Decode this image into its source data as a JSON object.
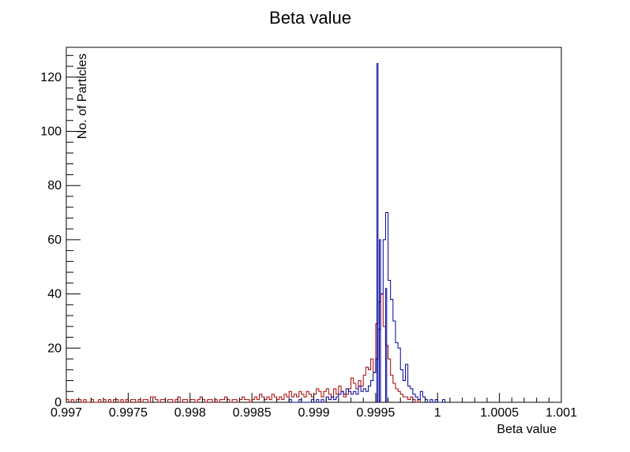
{
  "chart_data": {
    "type": "histogram",
    "title": "Beta value",
    "xlabel": "Beta value",
    "ylabel": "No. of Particles",
    "xlim": [
      0.997,
      1.001
    ],
    "ylim": [
      0,
      131
    ],
    "x_ticks": [
      "0.997",
      "0.9975",
      "0.998",
      "0.9985",
      "0.999",
      "0.9995",
      "1",
      "1.0005",
      "1.001"
    ],
    "x_tick_values": [
      0.997,
      0.9975,
      0.998,
      0.9985,
      0.999,
      0.9995,
      1.0,
      1.0005,
      1.001
    ],
    "y_ticks": [
      "0",
      "20",
      "40",
      "60",
      "80",
      "100",
      "120"
    ],
    "y_tick_values": [
      0,
      20,
      40,
      60,
      80,
      100,
      120
    ],
    "grid": false,
    "series": [
      {
        "color": "#aa0000",
        "bin_width": 1e-05,
        "bins": [
          [
            0.997,
            1
          ],
          [
            0.99702,
            0
          ],
          [
            0.99704,
            1
          ],
          [
            0.99706,
            0
          ],
          [
            0.99708,
            1
          ],
          [
            0.9971,
            1
          ],
          [
            0.99712,
            0
          ],
          [
            0.99714,
            1
          ],
          [
            0.99716,
            0
          ],
          [
            0.99718,
            0
          ],
          [
            0.9972,
            1
          ],
          [
            0.99722,
            0
          ],
          [
            0.99724,
            0
          ],
          [
            0.99726,
            1
          ],
          [
            0.99728,
            0
          ],
          [
            0.9973,
            1
          ],
          [
            0.99732,
            0
          ],
          [
            0.99734,
            1
          ],
          [
            0.99736,
            0
          ],
          [
            0.99738,
            1
          ],
          [
            0.9974,
            1
          ],
          [
            0.99742,
            0
          ],
          [
            0.99744,
            1
          ],
          [
            0.99746,
            0
          ],
          [
            0.99748,
            1
          ],
          [
            0.9975,
            0
          ],
          [
            0.99752,
            1
          ],
          [
            0.99754,
            1
          ],
          [
            0.99756,
            0
          ],
          [
            0.99758,
            1
          ],
          [
            0.9976,
            0
          ],
          [
            0.99762,
            1
          ],
          [
            0.99764,
            1
          ],
          [
            0.99766,
            0
          ],
          [
            0.99768,
            2
          ],
          [
            0.9977,
            2
          ],
          [
            0.99772,
            1
          ],
          [
            0.99774,
            0
          ],
          [
            0.99776,
            1
          ],
          [
            0.99778,
            1
          ],
          [
            0.9978,
            0
          ],
          [
            0.99782,
            1
          ],
          [
            0.99784,
            1
          ],
          [
            0.99786,
            0
          ],
          [
            0.99788,
            1
          ],
          [
            0.9979,
            2
          ],
          [
            0.99792,
            0
          ],
          [
            0.99794,
            1
          ],
          [
            0.99796,
            1
          ],
          [
            0.99798,
            0
          ],
          [
            0.998,
            1
          ],
          [
            0.99802,
            1
          ],
          [
            0.99804,
            0
          ],
          [
            0.99806,
            1
          ],
          [
            0.99808,
            2
          ],
          [
            0.9981,
            1
          ],
          [
            0.99812,
            0
          ],
          [
            0.99814,
            1
          ],
          [
            0.99816,
            1
          ],
          [
            0.99818,
            0
          ],
          [
            0.9982,
            1
          ],
          [
            0.99822,
            0
          ],
          [
            0.99824,
            1
          ],
          [
            0.99826,
            1
          ],
          [
            0.99828,
            2
          ],
          [
            0.9983,
            1
          ],
          [
            0.99832,
            0
          ],
          [
            0.99834,
            1
          ],
          [
            0.99836,
            1
          ],
          [
            0.99838,
            0
          ],
          [
            0.9984,
            1
          ],
          [
            0.99842,
            2
          ],
          [
            0.99844,
            1
          ],
          [
            0.99846,
            1
          ],
          [
            0.99848,
            0
          ],
          [
            0.9985,
            1
          ],
          [
            0.99852,
            2
          ],
          [
            0.99854,
            1
          ],
          [
            0.99856,
            3
          ],
          [
            0.99858,
            2
          ],
          [
            0.9986,
            1
          ],
          [
            0.99862,
            2
          ],
          [
            0.99864,
            1
          ],
          [
            0.99866,
            3
          ],
          [
            0.99868,
            2
          ],
          [
            0.9987,
            1
          ],
          [
            0.99872,
            2
          ],
          [
            0.99874,
            1
          ],
          [
            0.99876,
            3
          ],
          [
            0.99878,
            2
          ],
          [
            0.9988,
            4
          ],
          [
            0.99882,
            2
          ],
          [
            0.99884,
            3
          ],
          [
            0.99886,
            2
          ],
          [
            0.99888,
            4
          ],
          [
            0.9989,
            3
          ],
          [
            0.99892,
            2
          ],
          [
            0.99894,
            4
          ],
          [
            0.99896,
            3
          ],
          [
            0.99898,
            2
          ],
          [
            0.999,
            3
          ],
          [
            0.99902,
            5
          ],
          [
            0.99904,
            4
          ],
          [
            0.99906,
            2
          ],
          [
            0.99908,
            4
          ],
          [
            0.9991,
            5
          ],
          [
            0.99912,
            3
          ],
          [
            0.99914,
            2
          ],
          [
            0.99916,
            5
          ],
          [
            0.99918,
            3
          ],
          [
            0.9992,
            6
          ],
          [
            0.99922,
            4
          ],
          [
            0.99924,
            2
          ],
          [
            0.99926,
            3
          ],
          [
            0.99928,
            5
          ],
          [
            0.9993,
            9
          ],
          [
            0.99932,
            7
          ],
          [
            0.99934,
            5
          ],
          [
            0.99936,
            8
          ],
          [
            0.99938,
            6
          ],
          [
            0.9994,
            10
          ],
          [
            0.99942,
            13
          ],
          [
            0.99944,
            12
          ],
          [
            0.99946,
            16
          ],
          [
            0.99948,
            11
          ],
          [
            0.9995,
            29
          ],
          [
            0.99952,
            37
          ],
          [
            0.99954,
            40
          ],
          [
            0.99956,
            28
          ],
          [
            0.99958,
            21
          ],
          [
            0.9996,
            16
          ],
          [
            0.99962,
            10
          ],
          [
            0.99964,
            7
          ],
          [
            0.99966,
            5
          ],
          [
            0.99968,
            4
          ],
          [
            0.9997,
            3
          ],
          [
            0.99972,
            2
          ],
          [
            0.99974,
            2
          ],
          [
            0.99976,
            1
          ],
          [
            0.99978,
            2
          ],
          [
            0.9998,
            1
          ],
          [
            0.99982,
            0
          ],
          [
            0.99984,
            1
          ]
        ]
      },
      {
        "color": "#000099",
        "bin_width": 1e-05,
        "bins": [
          [
            0.9988,
            1
          ],
          [
            0.99882,
            0
          ],
          [
            0.99884,
            0
          ],
          [
            0.99886,
            0
          ],
          [
            0.99888,
            1
          ],
          [
            0.9989,
            0
          ],
          [
            0.99892,
            0
          ],
          [
            0.99894,
            0
          ],
          [
            0.99896,
            0
          ],
          [
            0.99898,
            1
          ],
          [
            0.999,
            0
          ],
          [
            0.99902,
            1
          ],
          [
            0.99904,
            0
          ],
          [
            0.99906,
            1
          ],
          [
            0.99908,
            0
          ],
          [
            0.9991,
            2
          ],
          [
            0.99912,
            1
          ],
          [
            0.99914,
            2
          ],
          [
            0.99916,
            1
          ],
          [
            0.99918,
            2
          ],
          [
            0.9992,
            3
          ],
          [
            0.99922,
            4
          ],
          [
            0.99924,
            3
          ],
          [
            0.99926,
            5
          ],
          [
            0.99928,
            4
          ],
          [
            0.9993,
            3
          ],
          [
            0.99932,
            4
          ],
          [
            0.99934,
            3
          ],
          [
            0.99936,
            6
          ],
          [
            0.99938,
            4
          ],
          [
            0.9994,
            5
          ],
          [
            0.99942,
            4
          ],
          [
            0.99944,
            6
          ],
          [
            0.99946,
            8
          ],
          [
            0.99948,
            11
          ],
          [
            0.9995,
            16
          ],
          [
            0.99952,
            27
          ],
          [
            0.99954,
            40
          ],
          [
            0.99956,
            60
          ],
          [
            0.99958,
            70
          ],
          [
            0.9996,
            45
          ],
          [
            0.99962,
            38
          ],
          [
            0.99964,
            30
          ],
          [
            0.99966,
            22
          ],
          [
            0.99968,
            20
          ],
          [
            0.9997,
            12
          ],
          [
            0.99972,
            8
          ],
          [
            0.99974,
            14
          ],
          [
            0.99976,
            6
          ],
          [
            0.99978,
            5
          ],
          [
            0.9998,
            3
          ],
          [
            0.99982,
            2
          ],
          [
            0.99984,
            1
          ],
          [
            0.99986,
            4
          ],
          [
            0.99988,
            2
          ],
          [
            0.9999,
            1
          ],
          [
            0.99992,
            0
          ],
          [
            0.99994,
            1
          ],
          [
            0.99996,
            0
          ],
          [
            0.99998,
            1
          ],
          [
            1.0,
            0
          ],
          [
            1.00002,
            0
          ],
          [
            1.00004,
            1
          ]
        ],
        "peaks": [
          [
            0.99951,
            125
          ],
          [
            0.99953,
            60
          ],
          [
            0.99958,
            42
          ]
        ]
      }
    ]
  }
}
